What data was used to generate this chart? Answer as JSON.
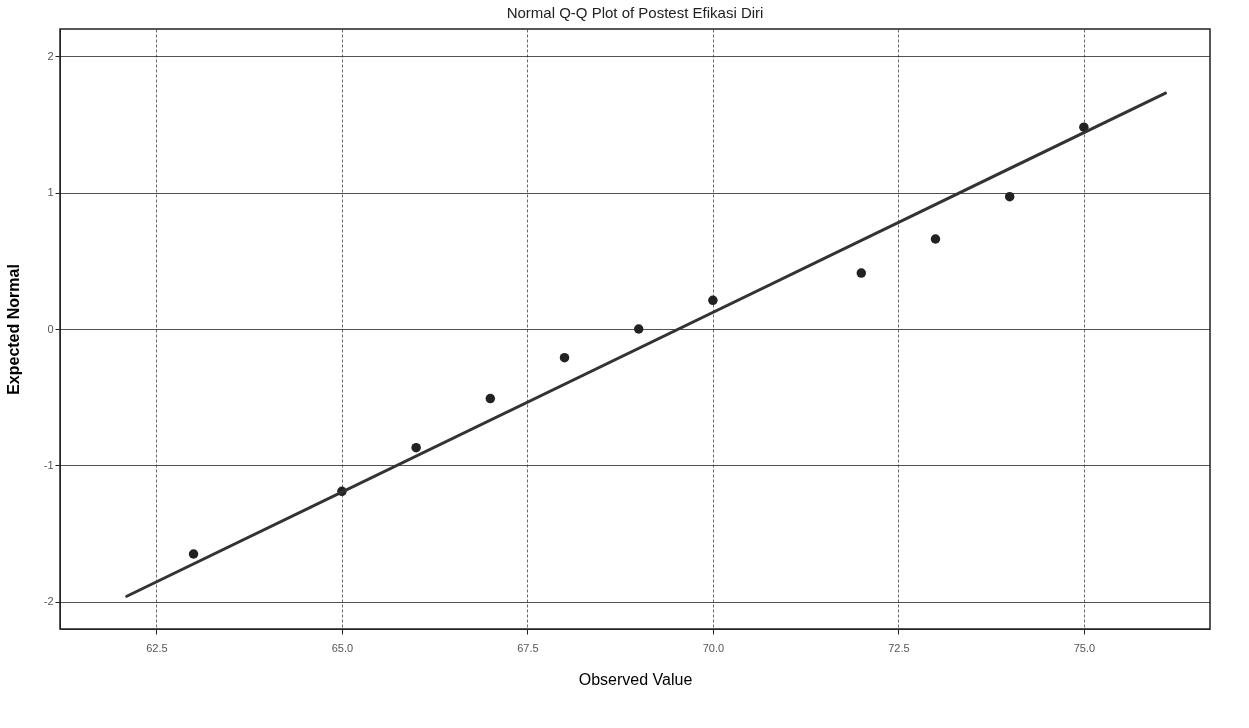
{
  "chart_data": {
    "type": "scatter",
    "title": "Normal Q-Q Plot of Postest Efikasi Diri",
    "xlabel": "Observed Value",
    "ylabel": "Expected Normal",
    "xlim": [
      61.2,
      76.7
    ],
    "ylim": [
      -2.2,
      2.2
    ],
    "xticks": [
      {
        "value": 62.5,
        "label": "62.5"
      },
      {
        "value": 65,
        "label": "65.0"
      },
      {
        "value": 67.5,
        "label": "67.5"
      },
      {
        "value": 70,
        "label": "70.0"
      },
      {
        "value": 72.5,
        "label": "72.5"
      },
      {
        "value": 75,
        "label": "75.0"
      }
    ],
    "yticks": [
      -2,
      -1,
      0,
      1,
      2
    ],
    "grid": true,
    "series": [
      {
        "marker": "circle",
        "color": "#222222",
        "x": [
          63,
          65,
          66,
          67,
          68,
          69,
          70,
          72,
          73,
          74,
          75
        ],
        "values": [
          -1.65,
          -1.19,
          -0.87,
          -0.51,
          -0.21,
          0.0,
          0.21,
          0.41,
          0.66,
          0.97,
          1.48
        ]
      },
      {
        "type": "line",
        "color": "#333333",
        "x": [
          62.1,
          76.1
        ],
        "values": [
          -1.96,
          1.73
        ]
      }
    ]
  }
}
